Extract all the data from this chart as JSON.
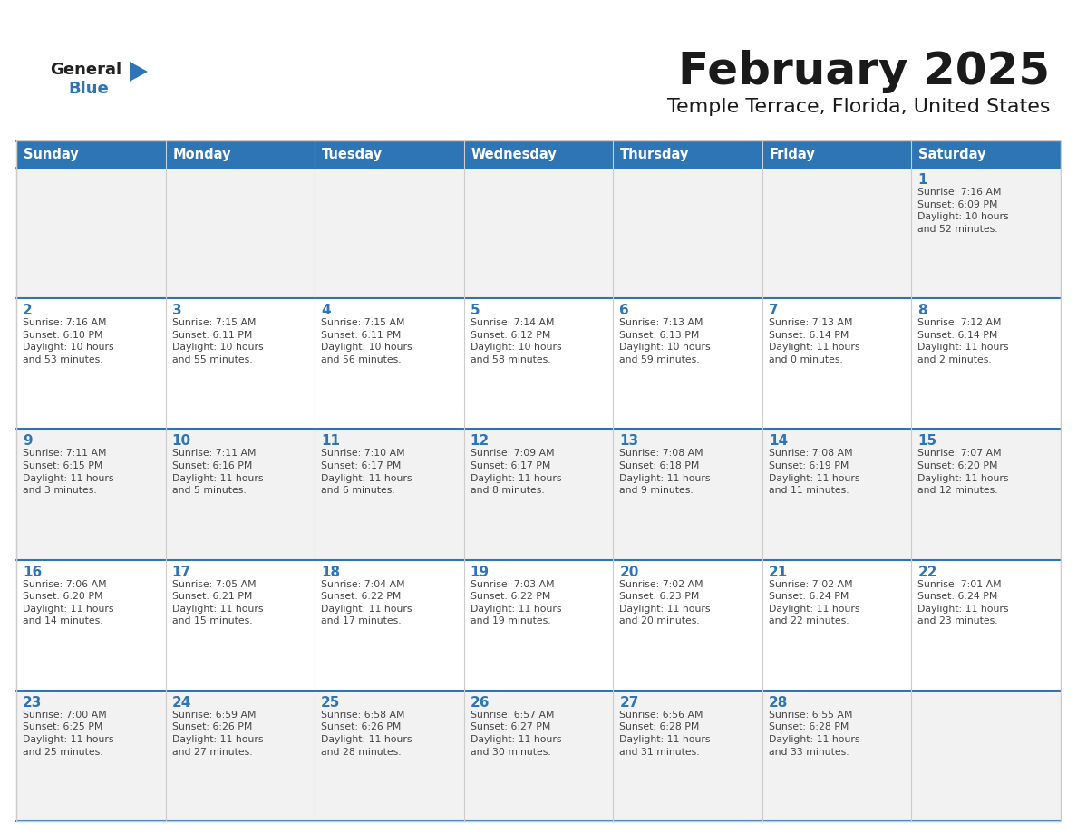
{
  "title": "February 2025",
  "subtitle": "Temple Terrace, Florida, United States",
  "days_of_week": [
    "Sunday",
    "Monday",
    "Tuesday",
    "Wednesday",
    "Thursday",
    "Friday",
    "Saturday"
  ],
  "header_bg": "#2E75B6",
  "header_text": "#FFFFFF",
  "cell_bg_odd": "#F2F2F2",
  "cell_bg_even": "#FFFFFF",
  "cell_border": "#CCCCCC",
  "day_number_color": "#2E75B6",
  "info_text_color": "#444444",
  "title_color": "#1a1a1a",
  "subtitle_color": "#1a1a1a",
  "logo_general_color": "#222222",
  "logo_blue_color": "#2E75B6",
  "row_separator_color": "#2E75B6",
  "calendar_data": [
    {
      "day": 1,
      "row": 0,
      "col": 6,
      "sunrise": "7:16 AM",
      "sunset": "6:09 PM",
      "daylight_a": "10 hours",
      "daylight_b": "and 52 minutes."
    },
    {
      "day": 2,
      "row": 1,
      "col": 0,
      "sunrise": "7:16 AM",
      "sunset": "6:10 PM",
      "daylight_a": "10 hours",
      "daylight_b": "and 53 minutes."
    },
    {
      "day": 3,
      "row": 1,
      "col": 1,
      "sunrise": "7:15 AM",
      "sunset": "6:11 PM",
      "daylight_a": "10 hours",
      "daylight_b": "and 55 minutes."
    },
    {
      "day": 4,
      "row": 1,
      "col": 2,
      "sunrise": "7:15 AM",
      "sunset": "6:11 PM",
      "daylight_a": "10 hours",
      "daylight_b": "and 56 minutes."
    },
    {
      "day": 5,
      "row": 1,
      "col": 3,
      "sunrise": "7:14 AM",
      "sunset": "6:12 PM",
      "daylight_a": "10 hours",
      "daylight_b": "and 58 minutes."
    },
    {
      "day": 6,
      "row": 1,
      "col": 4,
      "sunrise": "7:13 AM",
      "sunset": "6:13 PM",
      "daylight_a": "10 hours",
      "daylight_b": "and 59 minutes."
    },
    {
      "day": 7,
      "row": 1,
      "col": 5,
      "sunrise": "7:13 AM",
      "sunset": "6:14 PM",
      "daylight_a": "11 hours",
      "daylight_b": "and 0 minutes."
    },
    {
      "day": 8,
      "row": 1,
      "col": 6,
      "sunrise": "7:12 AM",
      "sunset": "6:14 PM",
      "daylight_a": "11 hours",
      "daylight_b": "and 2 minutes."
    },
    {
      "day": 9,
      "row": 2,
      "col": 0,
      "sunrise": "7:11 AM",
      "sunset": "6:15 PM",
      "daylight_a": "11 hours",
      "daylight_b": "and 3 minutes."
    },
    {
      "day": 10,
      "row": 2,
      "col": 1,
      "sunrise": "7:11 AM",
      "sunset": "6:16 PM",
      "daylight_a": "11 hours",
      "daylight_b": "and 5 minutes."
    },
    {
      "day": 11,
      "row": 2,
      "col": 2,
      "sunrise": "7:10 AM",
      "sunset": "6:17 PM",
      "daylight_a": "11 hours",
      "daylight_b": "and 6 minutes."
    },
    {
      "day": 12,
      "row": 2,
      "col": 3,
      "sunrise": "7:09 AM",
      "sunset": "6:17 PM",
      "daylight_a": "11 hours",
      "daylight_b": "and 8 minutes."
    },
    {
      "day": 13,
      "row": 2,
      "col": 4,
      "sunrise": "7:08 AM",
      "sunset": "6:18 PM",
      "daylight_a": "11 hours",
      "daylight_b": "and 9 minutes."
    },
    {
      "day": 14,
      "row": 2,
      "col": 5,
      "sunrise": "7:08 AM",
      "sunset": "6:19 PM",
      "daylight_a": "11 hours",
      "daylight_b": "and 11 minutes."
    },
    {
      "day": 15,
      "row": 2,
      "col": 6,
      "sunrise": "7:07 AM",
      "sunset": "6:20 PM",
      "daylight_a": "11 hours",
      "daylight_b": "and 12 minutes."
    },
    {
      "day": 16,
      "row": 3,
      "col": 0,
      "sunrise": "7:06 AM",
      "sunset": "6:20 PM",
      "daylight_a": "11 hours",
      "daylight_b": "and 14 minutes."
    },
    {
      "day": 17,
      "row": 3,
      "col": 1,
      "sunrise": "7:05 AM",
      "sunset": "6:21 PM",
      "daylight_a": "11 hours",
      "daylight_b": "and 15 minutes."
    },
    {
      "day": 18,
      "row": 3,
      "col": 2,
      "sunrise": "7:04 AM",
      "sunset": "6:22 PM",
      "daylight_a": "11 hours",
      "daylight_b": "and 17 minutes."
    },
    {
      "day": 19,
      "row": 3,
      "col": 3,
      "sunrise": "7:03 AM",
      "sunset": "6:22 PM",
      "daylight_a": "11 hours",
      "daylight_b": "and 19 minutes."
    },
    {
      "day": 20,
      "row": 3,
      "col": 4,
      "sunrise": "7:02 AM",
      "sunset": "6:23 PM",
      "daylight_a": "11 hours",
      "daylight_b": "and 20 minutes."
    },
    {
      "day": 21,
      "row": 3,
      "col": 5,
      "sunrise": "7:02 AM",
      "sunset": "6:24 PM",
      "daylight_a": "11 hours",
      "daylight_b": "and 22 minutes."
    },
    {
      "day": 22,
      "row": 3,
      "col": 6,
      "sunrise": "7:01 AM",
      "sunset": "6:24 PM",
      "daylight_a": "11 hours",
      "daylight_b": "and 23 minutes."
    },
    {
      "day": 23,
      "row": 4,
      "col": 0,
      "sunrise": "7:00 AM",
      "sunset": "6:25 PM",
      "daylight_a": "11 hours",
      "daylight_b": "and 25 minutes."
    },
    {
      "day": 24,
      "row": 4,
      "col": 1,
      "sunrise": "6:59 AM",
      "sunset": "6:26 PM",
      "daylight_a": "11 hours",
      "daylight_b": "and 27 minutes."
    },
    {
      "day": 25,
      "row": 4,
      "col": 2,
      "sunrise": "6:58 AM",
      "sunset": "6:26 PM",
      "daylight_a": "11 hours",
      "daylight_b": "and 28 minutes."
    },
    {
      "day": 26,
      "row": 4,
      "col": 3,
      "sunrise": "6:57 AM",
      "sunset": "6:27 PM",
      "daylight_a": "11 hours",
      "daylight_b": "and 30 minutes."
    },
    {
      "day": 27,
      "row": 4,
      "col": 4,
      "sunrise": "6:56 AM",
      "sunset": "6:28 PM",
      "daylight_a": "11 hours",
      "daylight_b": "and 31 minutes."
    },
    {
      "day": 28,
      "row": 4,
      "col": 5,
      "sunrise": "6:55 AM",
      "sunset": "6:28 PM",
      "daylight_a": "11 hours",
      "daylight_b": "and 33 minutes."
    }
  ]
}
